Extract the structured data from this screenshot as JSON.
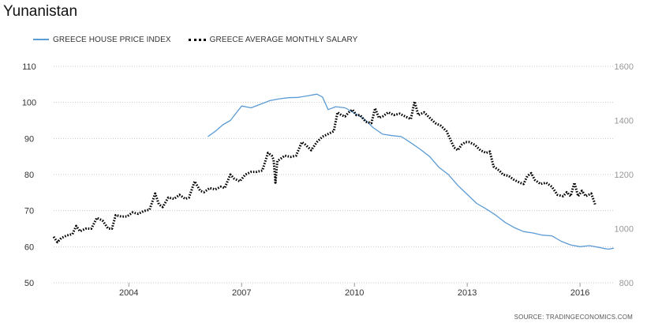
{
  "title": "Yunanistan",
  "source": "SOURCE: TRADINGECONOMICS.COM",
  "colors": {
    "house": "#5b9bd5",
    "salary": "#000000",
    "grid": "#c8c8c8"
  },
  "legend": {
    "house": "GREECE HOUSE PRICE INDEX",
    "salary": "GREECE AVERAGE MONTHLY SALARY"
  },
  "chart_data": {
    "type": "line",
    "title": "Yunanistan",
    "x_range": [
      2002.0,
      2016.9
    ],
    "x_ticks": [
      "2004",
      "2007",
      "2010",
      "2013",
      "2016"
    ],
    "y_left": {
      "range": [
        50,
        110
      ],
      "ticks": [
        "50",
        "60",
        "70",
        "80",
        "90",
        "100",
        "110"
      ]
    },
    "y_right": {
      "range": [
        800,
        1600
      ],
      "ticks": [
        "800",
        "1000",
        "1200",
        "1400",
        "1600"
      ]
    },
    "grid": "horizontal",
    "legend_position": "top-left",
    "series": [
      {
        "name": "GREECE HOUSE PRICE INDEX",
        "axis": "left",
        "style": "solid",
        "color": "#5b9bd5",
        "points": [
          [
            2006.1,
            90.5
          ],
          [
            2006.3,
            92.0
          ],
          [
            2006.5,
            93.8
          ],
          [
            2006.7,
            95.0
          ],
          [
            2006.85,
            97.0
          ],
          [
            2007.0,
            99.0
          ],
          [
            2007.25,
            98.5
          ],
          [
            2007.5,
            99.5
          ],
          [
            2007.75,
            100.5
          ],
          [
            2008.0,
            101.0
          ],
          [
            2008.25,
            101.3
          ],
          [
            2008.5,
            101.4
          ],
          [
            2008.75,
            101.8
          ],
          [
            2009.0,
            102.3
          ],
          [
            2009.15,
            101.5
          ],
          [
            2009.3,
            98.0
          ],
          [
            2009.5,
            98.8
          ],
          [
            2009.75,
            98.5
          ],
          [
            2010.0,
            97.0
          ],
          [
            2010.25,
            95.5
          ],
          [
            2010.5,
            93.0
          ],
          [
            2010.75,
            91.2
          ],
          [
            2011.0,
            90.8
          ],
          [
            2011.25,
            90.5
          ],
          [
            2011.5,
            88.8
          ],
          [
            2011.75,
            87.0
          ],
          [
            2012.0,
            85.0
          ],
          [
            2012.25,
            82.0
          ],
          [
            2012.5,
            80.0
          ],
          [
            2012.75,
            77.0
          ],
          [
            2013.0,
            74.5
          ],
          [
            2013.25,
            72.0
          ],
          [
            2013.5,
            70.5
          ],
          [
            2013.75,
            68.8
          ],
          [
            2014.0,
            66.8
          ],
          [
            2014.25,
            65.3
          ],
          [
            2014.5,
            64.2
          ],
          [
            2014.75,
            63.8
          ],
          [
            2015.0,
            63.2
          ],
          [
            2015.25,
            63.0
          ],
          [
            2015.5,
            61.5
          ],
          [
            2015.75,
            60.5
          ],
          [
            2016.0,
            60.0
          ],
          [
            2016.25,
            60.3
          ],
          [
            2016.5,
            59.8
          ],
          [
            2016.75,
            59.3
          ],
          [
            2016.9,
            59.6
          ]
        ]
      },
      {
        "name": "GREECE AVERAGE MONTHLY SALARY",
        "axis": "right",
        "style": "dotted",
        "color": "#000000",
        "points": [
          [
            2002.0,
            970
          ],
          [
            2002.1,
            950
          ],
          [
            2002.2,
            965
          ],
          [
            2002.35,
            975
          ],
          [
            2002.5,
            980
          ],
          [
            2002.6,
            1010
          ],
          [
            2002.7,
            990
          ],
          [
            2002.85,
            1000
          ],
          [
            2003.0,
            1000
          ],
          [
            2003.15,
            1040
          ],
          [
            2003.3,
            1030
          ],
          [
            2003.45,
            1000
          ],
          [
            2003.55,
            1000
          ],
          [
            2003.65,
            1050
          ],
          [
            2003.8,
            1045
          ],
          [
            2003.95,
            1045
          ],
          [
            2004.1,
            1060
          ],
          [
            2004.25,
            1055
          ],
          [
            2004.4,
            1065
          ],
          [
            2004.55,
            1070
          ],
          [
            2004.7,
            1130
          ],
          [
            2004.8,
            1090
          ],
          [
            2004.9,
            1080
          ],
          [
            2005.05,
            1115
          ],
          [
            2005.2,
            1110
          ],
          [
            2005.35,
            1125
          ],
          [
            2005.5,
            1110
          ],
          [
            2005.6,
            1115
          ],
          [
            2005.75,
            1175
          ],
          [
            2005.9,
            1140
          ],
          [
            2006.0,
            1135
          ],
          [
            2006.15,
            1150
          ],
          [
            2006.3,
            1145
          ],
          [
            2006.45,
            1155
          ],
          [
            2006.55,
            1150
          ],
          [
            2006.7,
            1200
          ],
          [
            2006.8,
            1185
          ],
          [
            2006.95,
            1175
          ],
          [
            2007.1,
            1200
          ],
          [
            2007.25,
            1210
          ],
          [
            2007.4,
            1210
          ],
          [
            2007.55,
            1215
          ],
          [
            2007.7,
            1280
          ],
          [
            2007.8,
            1270
          ],
          [
            2007.85,
            1255
          ],
          [
            2007.9,
            1170
          ],
          [
            2007.95,
            1250
          ],
          [
            2008.0,
            1255
          ],
          [
            2008.05,
            1260
          ],
          [
            2008.15,
            1270
          ],
          [
            2008.3,
            1265
          ],
          [
            2008.45,
            1270
          ],
          [
            2008.6,
            1320
          ],
          [
            2008.7,
            1310
          ],
          [
            2008.85,
            1290
          ],
          [
            2009.0,
            1320
          ],
          [
            2009.15,
            1340
          ],
          [
            2009.3,
            1350
          ],
          [
            2009.45,
            1360
          ],
          [
            2009.55,
            1430
          ],
          [
            2009.65,
            1420
          ],
          [
            2009.75,
            1415
          ],
          [
            2009.85,
            1430
          ],
          [
            2009.95,
            1440
          ],
          [
            2010.05,
            1420
          ],
          [
            2010.15,
            1420
          ],
          [
            2010.3,
            1395
          ],
          [
            2010.45,
            1390
          ],
          [
            2010.55,
            1445
          ],
          [
            2010.65,
            1410
          ],
          [
            2010.75,
            1415
          ],
          [
            2010.9,
            1430
          ],
          [
            2011.05,
            1420
          ],
          [
            2011.2,
            1425
          ],
          [
            2011.35,
            1415
          ],
          [
            2011.5,
            1405
          ],
          [
            2011.6,
            1470
          ],
          [
            2011.7,
            1420
          ],
          [
            2011.85,
            1430
          ],
          [
            2012.0,
            1410
          ],
          [
            2012.15,
            1390
          ],
          [
            2012.3,
            1380
          ],
          [
            2012.45,
            1360
          ],
          [
            2012.55,
            1330
          ],
          [
            2012.65,
            1300
          ],
          [
            2012.75,
            1290
          ],
          [
            2012.85,
            1310
          ],
          [
            2012.95,
            1320
          ],
          [
            2013.05,
            1320
          ],
          [
            2013.2,
            1310
          ],
          [
            2013.35,
            1290
          ],
          [
            2013.5,
            1280
          ],
          [
            2013.6,
            1285
          ],
          [
            2013.7,
            1230
          ],
          [
            2013.85,
            1215
          ],
          [
            2013.95,
            1200
          ],
          [
            2014.1,
            1195
          ],
          [
            2014.25,
            1180
          ],
          [
            2014.4,
            1170
          ],
          [
            2014.5,
            1165
          ],
          [
            2014.6,
            1195
          ],
          [
            2014.7,
            1205
          ],
          [
            2014.8,
            1180
          ],
          [
            2014.95,
            1165
          ],
          [
            2015.1,
            1170
          ],
          [
            2015.25,
            1155
          ],
          [
            2015.4,
            1125
          ],
          [
            2015.55,
            1120
          ],
          [
            2015.65,
            1135
          ],
          [
            2015.75,
            1120
          ],
          [
            2015.85,
            1170
          ],
          [
            2015.95,
            1120
          ],
          [
            2016.05,
            1140
          ],
          [
            2016.15,
            1120
          ],
          [
            2016.3,
            1130
          ],
          [
            2016.4,
            1090
          ]
        ]
      }
    ]
  }
}
